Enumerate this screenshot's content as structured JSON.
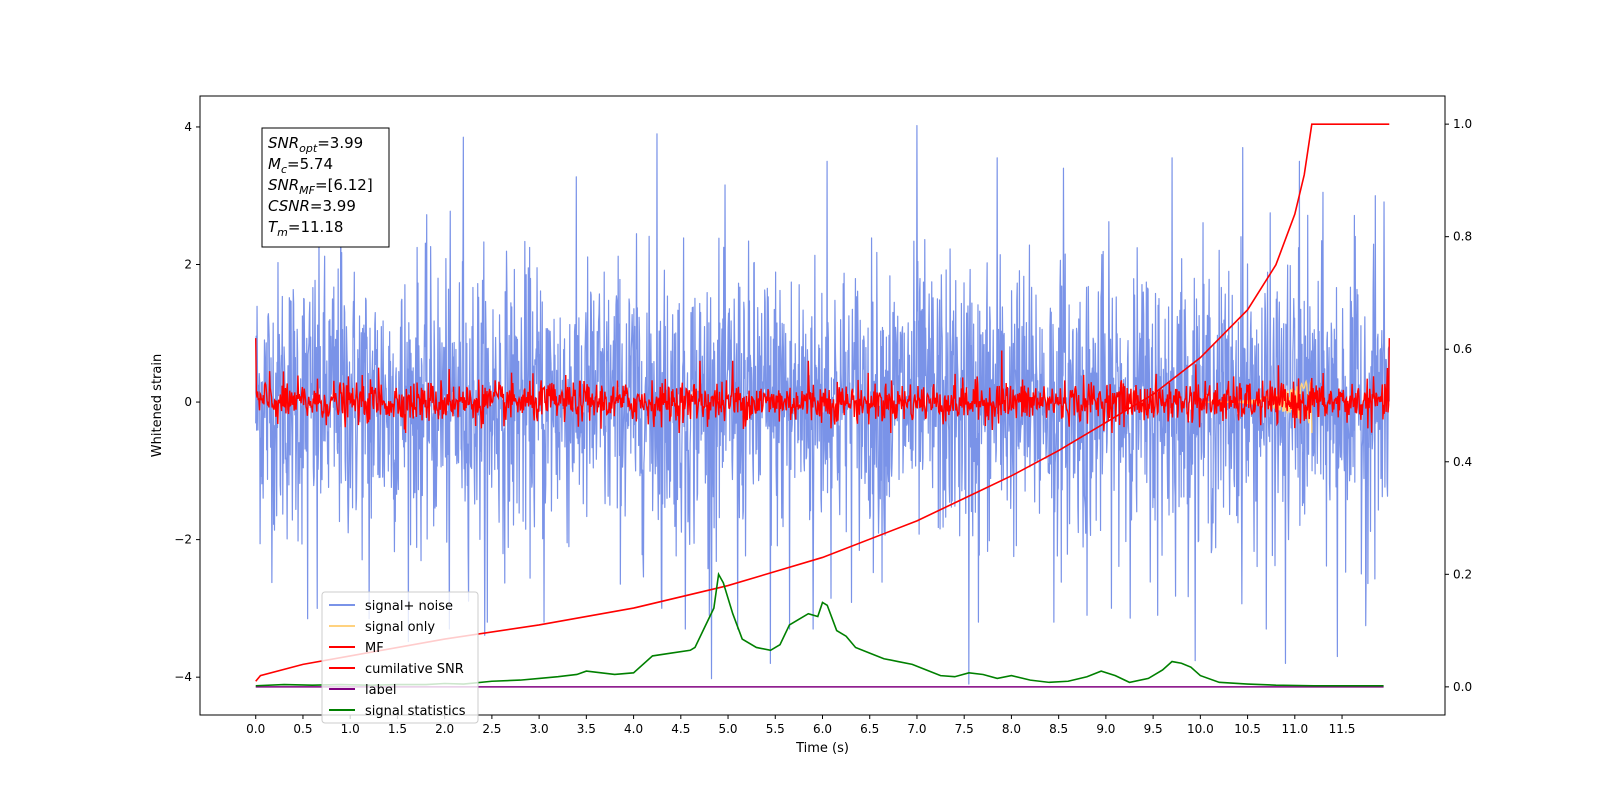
{
  "chart_data": {
    "type": "line",
    "xlabel": "Time (s)",
    "ylabel": "Whitened strain",
    "x_ticks": [
      0.0,
      0.5,
      1.0,
      1.5,
      2.0,
      2.5,
      3.0,
      3.5,
      4.0,
      4.5,
      5.0,
      5.5,
      6.0,
      6.5,
      7.0,
      7.5,
      8.0,
      8.5,
      9.0,
      9.5,
      10.0,
      10.5,
      11.0,
      11.5
    ],
    "x_tick_labels": [
      "0.0",
      "0.5",
      "1.0",
      "1.5",
      "2.0",
      "2.5",
      "3.0",
      "3.5",
      "4.0",
      "4.5",
      "5.0",
      "5.5",
      "6.0",
      "6.5",
      "7.0",
      "7.5",
      "8.0",
      "8.5",
      "9.0",
      "9.5",
      "10.0",
      "10.5",
      "11.0",
      "11.5"
    ],
    "y_ticks": [
      -4,
      -2,
      0,
      2,
      4
    ],
    "y_tick_labels": [
      "−4",
      "−2",
      "0",
      "2",
      "4"
    ],
    "y2_ticks": [
      0.0,
      0.2,
      0.4,
      0.6,
      0.8,
      1.0
    ],
    "y2_tick_labels": [
      "0.0",
      "0.2",
      "0.4",
      "0.6",
      "0.8",
      "1.0"
    ],
    "xlim": [
      -0.59,
      12.59
    ],
    "ylim": [
      -4.55,
      4.45
    ],
    "y2lim": [
      -0.05,
      1.05
    ],
    "grid": false,
    "legend_position": "lower-left",
    "annotation_lines": [
      {
        "sym": "SNR",
        "sub": "opt",
        "val": "=3.99"
      },
      {
        "sym": "M",
        "sub": "c",
        "val": "=5.74"
      },
      {
        "sym": "SNR",
        "sub": "MF",
        "val": "=[6.12]"
      },
      {
        "sym": "CSNR",
        "sub": "",
        "val": "=3.99"
      },
      {
        "sym": "T",
        "sub": "m",
        "val": "=11.18"
      }
    ],
    "series": [
      {
        "name": "signal+ noise",
        "color": "#7a93e8",
        "axis": "left",
        "x_range": [
          0.0,
          12.0
        ],
        "mean": 0.0,
        "std": 1.0,
        "min": -4.1,
        "max": 4.05,
        "spikes": [
          [
            0.55,
            -3.15
          ],
          [
            0.65,
            -3.0
          ],
          [
            0.9,
            3.7
          ],
          [
            1.2,
            -3.15
          ],
          [
            2.05,
            -3.3
          ],
          [
            2.2,
            3.85
          ],
          [
            2.45,
            -3.2
          ],
          [
            3.05,
            -3.2
          ],
          [
            4.25,
            3.9
          ],
          [
            4.3,
            -3.0
          ],
          [
            4.55,
            -3.3
          ],
          [
            4.8,
            -3.1
          ],
          [
            5.1,
            -3.3
          ],
          [
            5.45,
            -3.8
          ],
          [
            5.65,
            -3.3
          ],
          [
            5.9,
            -3.3
          ],
          [
            6.05,
            3.5
          ],
          [
            7.0,
            4.02
          ],
          [
            7.55,
            -4.1
          ],
          [
            7.65,
            -3.2
          ],
          [
            7.85,
            3.55
          ],
          [
            8.45,
            -3.2
          ],
          [
            8.8,
            -3.1
          ],
          [
            8.55,
            3.4
          ],
          [
            9.55,
            -3.1
          ],
          [
            9.7,
            3.55
          ],
          [
            10.45,
            3.7
          ],
          [
            10.7,
            -3.3
          ],
          [
            10.9,
            -3.8
          ],
          [
            11.05,
            3.5
          ],
          [
            11.3,
            3.05
          ],
          [
            11.45,
            -3.7
          ],
          [
            11.75,
            -3.25
          ],
          [
            11.85,
            3.0
          ]
        ]
      },
      {
        "name": "signal only",
        "color": "#ffd27f",
        "axis": "left",
        "x_range": [
          0.0,
          11.18
        ],
        "peak": 0.35
      },
      {
        "name": "MF",
        "color": "#ff0000",
        "axis": "left",
        "x_range": [
          0.0,
          12.0
        ],
        "mean": 0.0,
        "std": 0.15,
        "min": -0.45,
        "max": 0.93,
        "spikes": [
          [
            0.0,
            0.93
          ],
          [
            0.15,
            0.45
          ],
          [
            1.3,
            0.5
          ],
          [
            2.05,
            0.48
          ],
          [
            4.7,
            0.6
          ],
          [
            5.05,
            0.6
          ],
          [
            5.85,
            0.6
          ],
          [
            7.9,
            0.75
          ],
          [
            9.95,
            0.55
          ],
          [
            11.18,
            -0.45
          ],
          [
            11.18,
            0.35
          ],
          [
            12.0,
            1.02
          ]
        ]
      },
      {
        "name": "cumilative SNR",
        "color": "#ff0000",
        "axis": "right",
        "x_range": [
          0.0,
          12.0
        ],
        "t_merger": 11.18,
        "samples": [
          [
            0.0,
            0.01
          ],
          [
            0.05,
            0.02
          ],
          [
            0.5,
            0.04
          ],
          [
            1.0,
            0.055
          ],
          [
            2.0,
            0.085
          ],
          [
            3.0,
            0.11
          ],
          [
            4.0,
            0.14
          ],
          [
            5.0,
            0.18
          ],
          [
            6.0,
            0.23
          ],
          [
            7.0,
            0.295
          ],
          [
            7.5,
            0.335
          ],
          [
            8.0,
            0.375
          ],
          [
            8.5,
            0.42
          ],
          [
            9.0,
            0.47
          ],
          [
            9.5,
            0.52
          ],
          [
            10.0,
            0.585
          ],
          [
            10.5,
            0.67
          ],
          [
            10.8,
            0.75
          ],
          [
            11.0,
            0.84
          ],
          [
            11.1,
            0.91
          ],
          [
            11.18,
            1.0
          ],
          [
            12.0,
            1.0
          ]
        ]
      },
      {
        "name": "label",
        "color": "#800080",
        "axis": "right",
        "x_range": [
          0.0,
          11.94
        ],
        "values_const": 0.0
      },
      {
        "name": "signal statistics",
        "color": "#008000",
        "axis": "right",
        "x_range": [
          0.0,
          11.94
        ],
        "points": [
          [
            0.0,
            0.002
          ],
          [
            0.3,
            0.004
          ],
          [
            0.6,
            0.003
          ],
          [
            0.9,
            0.004
          ],
          [
            1.2,
            0.003
          ],
          [
            1.5,
            0.004
          ],
          [
            1.8,
            0.004
          ],
          [
            2.0,
            0.006
          ],
          [
            2.2,
            0.005
          ],
          [
            2.5,
            0.01
          ],
          [
            2.8,
            0.012
          ],
          [
            3.0,
            0.015
          ],
          [
            3.2,
            0.018
          ],
          [
            3.4,
            0.022
          ],
          [
            3.5,
            0.028
          ],
          [
            3.6,
            0.026
          ],
          [
            3.8,
            0.022
          ],
          [
            4.0,
            0.025
          ],
          [
            4.2,
            0.055
          ],
          [
            4.4,
            0.06
          ],
          [
            4.6,
            0.065
          ],
          [
            4.65,
            0.07
          ],
          [
            4.75,
            0.105
          ],
          [
            4.85,
            0.14
          ],
          [
            4.9,
            0.2
          ],
          [
            4.95,
            0.185
          ],
          [
            5.05,
            0.13
          ],
          [
            5.15,
            0.085
          ],
          [
            5.3,
            0.07
          ],
          [
            5.45,
            0.065
          ],
          [
            5.55,
            0.075
          ],
          [
            5.65,
            0.11
          ],
          [
            5.75,
            0.12
          ],
          [
            5.85,
            0.13
          ],
          [
            5.95,
            0.125
          ],
          [
            6.0,
            0.15
          ],
          [
            6.05,
            0.145
          ],
          [
            6.15,
            0.1
          ],
          [
            6.25,
            0.09
          ],
          [
            6.35,
            0.07
          ],
          [
            6.5,
            0.06
          ],
          [
            6.65,
            0.05
          ],
          [
            6.8,
            0.045
          ],
          [
            6.95,
            0.04
          ],
          [
            7.1,
            0.03
          ],
          [
            7.25,
            0.02
          ],
          [
            7.4,
            0.018
          ],
          [
            7.55,
            0.025
          ],
          [
            7.7,
            0.022
          ],
          [
            7.85,
            0.015
          ],
          [
            8.0,
            0.02
          ],
          [
            8.2,
            0.012
          ],
          [
            8.4,
            0.008
          ],
          [
            8.6,
            0.01
          ],
          [
            8.8,
            0.018
          ],
          [
            8.95,
            0.028
          ],
          [
            9.1,
            0.02
          ],
          [
            9.25,
            0.008
          ],
          [
            9.45,
            0.015
          ],
          [
            9.6,
            0.03
          ],
          [
            9.7,
            0.045
          ],
          [
            9.8,
            0.042
          ],
          [
            9.9,
            0.035
          ],
          [
            10.0,
            0.02
          ],
          [
            10.2,
            0.008
          ],
          [
            10.5,
            0.005
          ],
          [
            10.8,
            0.003
          ],
          [
            11.2,
            0.002
          ],
          [
            11.6,
            0.002
          ],
          [
            11.94,
            0.002
          ]
        ]
      }
    ]
  }
}
